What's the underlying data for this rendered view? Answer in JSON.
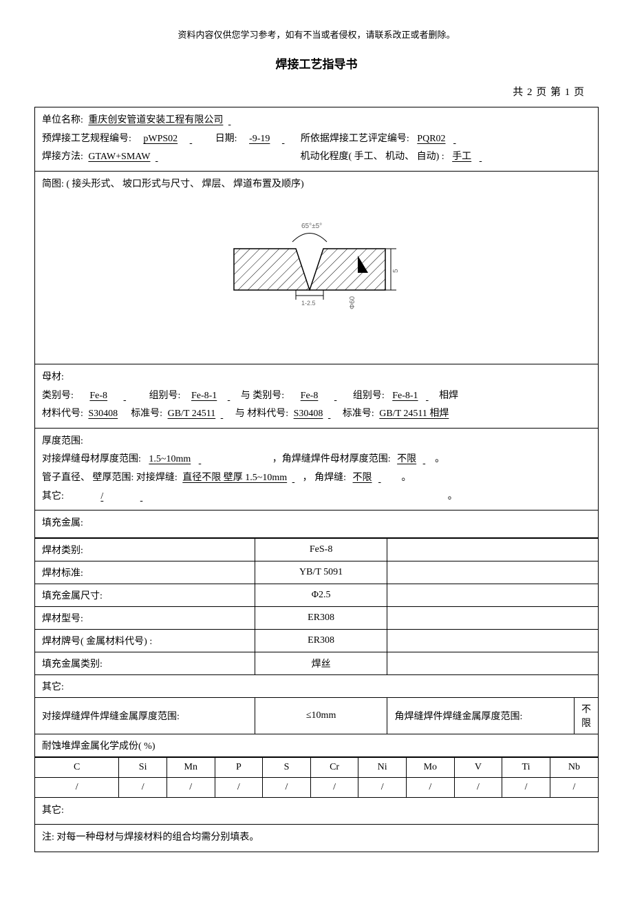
{
  "header": {
    "note": "资料内容仅供您学习参考，如有不当或者侵权，请联系改正或者删除。",
    "title": "焊接工艺指导书",
    "pageInfo": "共 2 页 第 1 页"
  },
  "info": {
    "orgLabel": "单位名称:",
    "orgValue": "重庆创安管道安装工程有限公司",
    "wpsNoLabel": "预焊接工艺规程编号:",
    "wpsNoValue": "pWPS02",
    "dateLabel": "日期:",
    "dateValue": "-9-19",
    "pqrLabel": "所依据焊接工艺评定编号:",
    "pqrValue": "PQR02",
    "methodLabel": "焊接方法:",
    "methodValue": "GTAW+SMAW",
    "mechLabel": "机动化程度( 手工、 机动、 自动) :",
    "mechValue": "手工",
    "sketchLabel": "简图: ( 接头形式、 坡口形式与尺寸、 焊层、 焊道布置及顺序)"
  },
  "diagram": {
    "angle": "65°±5°",
    "gap": "1-2.5",
    "thickness": "5",
    "dia": "Φ60"
  },
  "base": {
    "title": "母材:",
    "catLabel": "类别号:",
    "cat1": "Fe-8",
    "groupLabel": "组别号:",
    "group1": "Fe-8-1",
    "with": "与 类别号:",
    "cat2": "Fe-8",
    "group2": "Fe-8-1",
    "suffix": "相焊",
    "matCodeLabel": "材料代号:",
    "matCode1": "S30408",
    "stdLabel": "标准号:",
    "std1": "GB/T 24511",
    "withMat": "与 材料代号:",
    "matCode2": "S30408",
    "std2": "GB/T 24511 相焊"
  },
  "thk": {
    "title": "厚度范围:",
    "buttLabel": "对接焊缝母材厚度范围:",
    "buttValue": "1.5~10mm",
    "filletLabel": "，角焊缝焊件母材厚度范围:",
    "filletValue": "不限",
    "pipeLabel": "管子直径、 壁厚范围: 对接焊缝:",
    "pipeValue": "直径不限  壁厚 1.5~10mm",
    "pipeFilletLabel": "， 角焊缝:",
    "pipeFilletValue": "不限",
    "otherLabel": "其它:",
    "otherValue": "/"
  },
  "filler": {
    "title": "填充金属:",
    "rows": [
      {
        "label": "焊材类别:",
        "v1": "FeS-8"
      },
      {
        "label": "焊材标准:",
        "v1": "YB/T 5091"
      },
      {
        "label": "填充金属尺寸:",
        "v1": "Φ2.5"
      },
      {
        "label": "焊材型号:",
        "v1": "ER308"
      },
      {
        "label": "焊材牌号( 金属材料代号) :",
        "v1": "ER308"
      },
      {
        "label": "填充金属类别:",
        "v1": "焊丝"
      }
    ],
    "other": "其它:",
    "buttRangeLabel": "对接焊缝焊件焊缝金属厚度范围:",
    "buttRangeValue": "≤10mm",
    "filletRangeLabel": "角焊缝焊件焊缝金属厚度范围:",
    "filletRangeValue": "不限"
  },
  "chem": {
    "title": "耐蚀堆焊金属化学成份( %)",
    "headers": [
      "C",
      "Si",
      "Mn",
      "P",
      "S",
      "Cr",
      "Ni",
      "Mo",
      "V",
      "Ti",
      "Nb"
    ],
    "values": [
      "/",
      "/",
      "/",
      "/",
      "/",
      "/",
      "/",
      "/",
      "/",
      "/",
      "/"
    ]
  },
  "footer": {
    "other": "其它:",
    "note": "注: 对每一种母材与焊接材料的组合均需分别填表。"
  },
  "style": {
    "bg": "#ffffff",
    "line": "#000000",
    "hatch": "#000000",
    "font_body": 14,
    "font_title": 17
  }
}
